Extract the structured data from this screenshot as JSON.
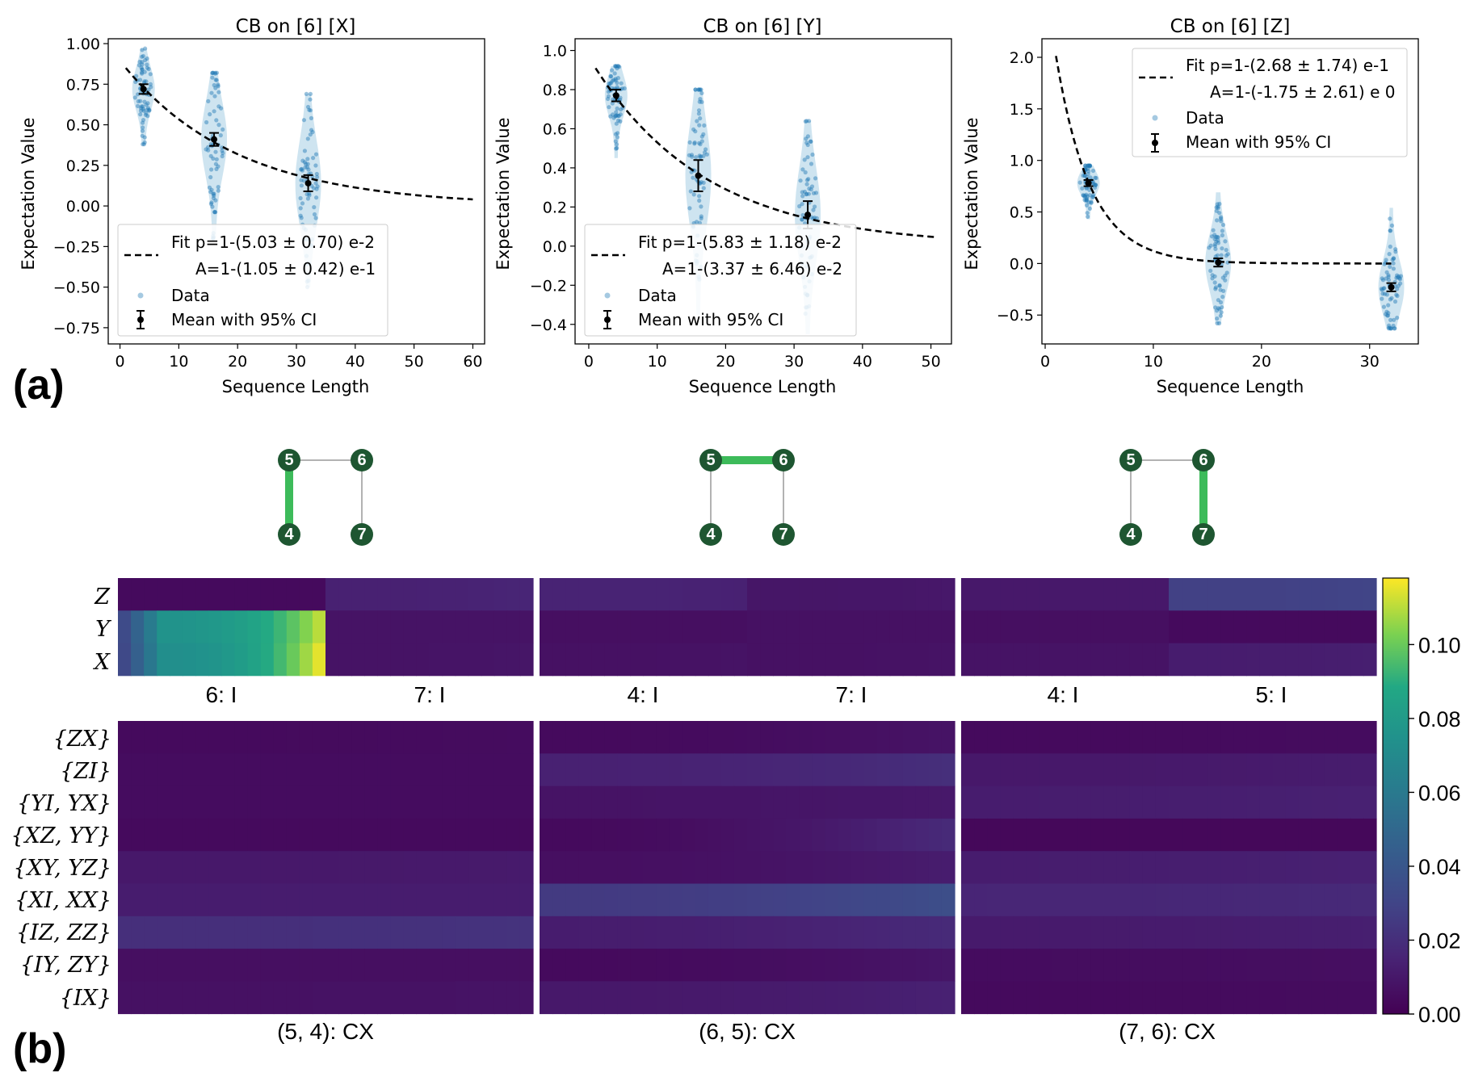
{
  "panel_labels": {
    "a": "(a)",
    "b": "(b)"
  },
  "chart_data": [
    {
      "type": "scatter",
      "title": "CB on [6] [X]",
      "xlabel": "Sequence Length",
      "ylabel": "Expectation Value",
      "xlim": [
        -2,
        62
      ],
      "ylim": [
        -0.85,
        1.03
      ],
      "xticks": [
        0,
        10,
        20,
        30,
        40,
        50,
        60
      ],
      "xtick_labels": [
        "0",
        "10",
        "20",
        "30",
        "40",
        "50",
        "60"
      ],
      "yticks": [
        1.0,
        0.75,
        0.5,
        0.25,
        0.0,
        -0.25,
        -0.5,
        -0.75
      ],
      "ytick_labels": [
        "1.00",
        "0.75",
        "0.50",
        "0.25",
        "0.00",
        "−0.25",
        "−0.50",
        "−0.75"
      ],
      "fit": {
        "A": 0.895,
        "p": 0.9497,
        "x_start": 1,
        "x_end": 60
      },
      "groups": [
        {
          "x": 4,
          "mean": 0.72,
          "ci": 0.03,
          "min": 0.38,
          "max": 0.97
        },
        {
          "x": 16,
          "mean": 0.41,
          "ci": 0.04,
          "min": -0.2,
          "max": 0.82
        },
        {
          "x": 32,
          "mean": 0.14,
          "ci": 0.05,
          "min": -0.5,
          "max": 0.69
        }
      ],
      "legend": {
        "position": "lower-left",
        "fit_line1": "Fit p=1-(5.03 ± 0.70) e-2",
        "fit_line2": "A=1-(1.05 ± 0.42) e-1",
        "data": "Data",
        "mean": "Mean with 95% CI"
      }
    },
    {
      "type": "scatter",
      "title": "CB on [6] [Y]",
      "xlabel": "Sequence Length",
      "ylabel": "Expectation Value",
      "xlim": [
        -2,
        53
      ],
      "ylim": [
        -0.5,
        1.06
      ],
      "xticks": [
        0,
        10,
        20,
        30,
        40,
        50
      ],
      "xtick_labels": [
        "0",
        "10",
        "20",
        "30",
        "40",
        "50"
      ],
      "yticks": [
        1.0,
        0.8,
        0.6,
        0.4,
        0.2,
        0.0,
        -0.2,
        -0.4
      ],
      "ytick_labels": [
        "1.0",
        "0.8",
        "0.6",
        "0.4",
        "0.2",
        "0.0",
        "−0.2",
        "−0.4"
      ],
      "fit": {
        "A": 0.966,
        "p": 0.9417,
        "x_start": 1,
        "x_end": 51
      },
      "groups": [
        {
          "x": 4,
          "mean": 0.77,
          "ci": 0.03,
          "min": 0.45,
          "max": 0.92
        },
        {
          "x": 16,
          "mean": 0.36,
          "ci": 0.08,
          "min": -0.35,
          "max": 0.8
        },
        {
          "x": 32,
          "mean": 0.16,
          "ci": 0.07,
          "min": -0.45,
          "max": 0.64
        }
      ],
      "legend": {
        "position": "lower-left",
        "fit_line1": "Fit p=1-(5.83 ± 1.18) e-2",
        "fit_line2": "A=1-(3.37 ± 6.46) e-2",
        "data": "Data",
        "mean": "Mean with 95% CI"
      }
    },
    {
      "type": "scatter",
      "title": "CB on [6] [Z]",
      "xlabel": "Sequence Length",
      "ylabel": "Expectation Value",
      "xlim": [
        -0.3,
        34.5
      ],
      "ylim": [
        -0.78,
        2.18
      ],
      "xticks": [
        0,
        10,
        20,
        30
      ],
      "xtick_labels": [
        "0",
        "10",
        "20",
        "30"
      ],
      "yticks": [
        2.0,
        1.5,
        1.0,
        0.5,
        0.0,
        -0.5
      ],
      "ytick_labels": [
        "2.0",
        "1.5",
        "1.0",
        "0.5",
        "0.0",
        "−0.5"
      ],
      "fit": {
        "A": 2.75,
        "p": 0.732,
        "offset": 0.0,
        "x_start": 1,
        "x_end": 32
      },
      "groups": [
        {
          "x": 4,
          "mean": 0.78,
          "ci": 0.03,
          "min": 0.43,
          "max": 0.95
        },
        {
          "x": 16,
          "mean": 0.01,
          "ci": 0.04,
          "min": -0.58,
          "max": 0.69
        },
        {
          "x": 32,
          "mean": -0.23,
          "ci": 0.04,
          "min": -0.63,
          "max": 0.54
        }
      ],
      "legend": {
        "position": "upper-right",
        "fit_line1": "Fit p=1-(2.68 ± 1.74) e-1",
        "fit_line2": "A=1-(-1.75 ± 2.61) e 0",
        "data": "Data",
        "mean": "Mean with 95% CI"
      }
    },
    {
      "type": "heatmap",
      "colorbar": {
        "vmin": 0.0,
        "vmax": 0.118,
        "ticks": [
          0.0,
          0.02,
          0.04,
          0.06,
          0.08,
          0.1
        ],
        "tick_labels": [
          "0.00",
          "0.02",
          "0.04",
          "0.06",
          "0.08",
          "0.10"
        ]
      },
      "single_qubit_rows": [
        "Z",
        "Y",
        "X"
      ],
      "two_qubit_rows": [
        "{ZX}",
        "{ZI}",
        "{YI, YX}",
        "{XZ, YY}",
        "{XY, YZ}",
        "{XI, XX}",
        "{IZ, ZZ}",
        "{IY, ZY}",
        "{IX}"
      ],
      "blocks": [
        {
          "graph_edge": [
            5,
            4
          ],
          "single_labels": [
            "6: I",
            "7: I"
          ],
          "single_values": [
            [
              [
                0.004,
                0.004
              ],
              [
                0.014,
                0.016
              ]
            ],
            [
              [
                0.075,
                0.11
              ],
              [
                0.008,
                0.008
              ]
            ],
            [
              [
                0.072,
                0.115
              ],
              [
                0.008,
                0.009
              ]
            ]
          ],
          "two_label": "(5, 4): CX",
          "two_values": [
            [
              0.004,
              0.005
            ],
            [
              0.005,
              0.005
            ],
            [
              0.005,
              0.005
            ],
            [
              0.004,
              0.004
            ],
            [
              0.01,
              0.011
            ],
            [
              0.012,
              0.012
            ],
            [
              0.02,
              0.022
            ],
            [
              0.006,
              0.006
            ],
            [
              0.007,
              0.008
            ]
          ]
        },
        {
          "graph_edge": [
            5,
            6
          ],
          "single_labels": [
            "4: I",
            "7: I"
          ],
          "single_values": [
            [
              [
                0.015,
                0.014
              ],
              [
                0.009,
                0.01
              ]
            ],
            [
              [
                0.006,
                0.006
              ],
              [
                0.007,
                0.007
              ]
            ],
            [
              [
                0.007,
                0.008
              ],
              [
                0.007,
                0.008
              ]
            ]
          ],
          "two_label": "(6, 5): CX",
          "two_values": [
            [
              0.004,
              0.008
            ],
            [
              0.014,
              0.02
            ],
            [
              0.008,
              0.01
            ],
            [
              0.004,
              0.018
            ],
            [
              0.006,
              0.012
            ],
            [
              0.025,
              0.035
            ],
            [
              0.012,
              0.018
            ],
            [
              0.004,
              0.009
            ],
            [
              0.01,
              0.014
            ]
          ]
        },
        {
          "graph_edge": [
            6,
            7
          ],
          "single_labels": [
            "4: I",
            "5: I"
          ],
          "single_values": [
            [
              [
                0.01,
                0.01
              ],
              [
                0.028,
                0.03
              ]
            ],
            [
              [
                0.006,
                0.006
              ],
              [
                0.004,
                0.004
              ]
            ],
            [
              [
                0.008,
                0.008
              ],
              [
                0.012,
                0.013
              ]
            ]
          ],
          "two_label": "(7, 6): CX",
          "two_values": [
            [
              0.004,
              0.005
            ],
            [
              0.01,
              0.012
            ],
            [
              0.012,
              0.014
            ],
            [
              0.003,
              0.003
            ],
            [
              0.012,
              0.014
            ],
            [
              0.016,
              0.018
            ],
            [
              0.011,
              0.013
            ],
            [
              0.005,
              0.006
            ],
            [
              0.004,
              0.005
            ]
          ]
        }
      ]
    }
  ],
  "qubit_graphs": [
    {
      "nodes": [
        "5",
        "6",
        "4",
        "7"
      ],
      "highlight": "5-4"
    },
    {
      "nodes": [
        "5",
        "6",
        "4",
        "7"
      ],
      "highlight": "5-6"
    },
    {
      "nodes": [
        "5",
        "6",
        "4",
        "7"
      ],
      "highlight": "6-7"
    }
  ],
  "colors": {
    "data": "#1f77b4",
    "violin": "#a6cee3",
    "node": "#1e5631",
    "edge": "#999999",
    "highlight": "#3dbb5a"
  }
}
